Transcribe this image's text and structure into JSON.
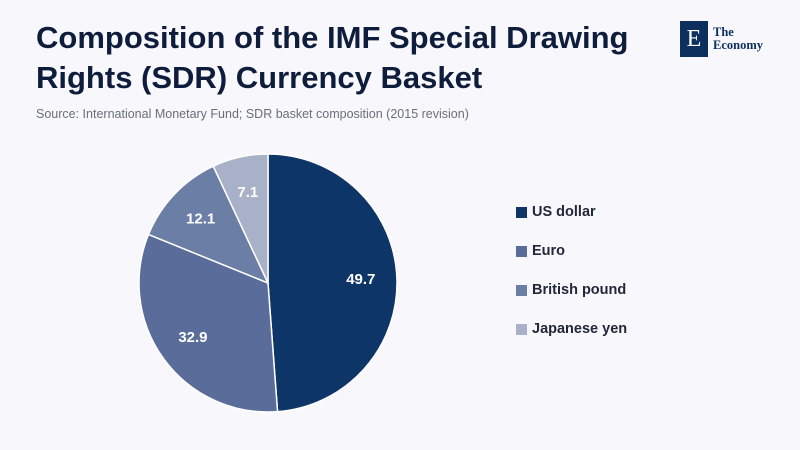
{
  "title": "Composition of the IMF Special Drawing Rights (SDR) Currency Basket",
  "source": "Source: International Monetary Fund; SDR basket composition (2015 revision)",
  "brand": {
    "mark": "E",
    "line1": "The",
    "line2": "Economy"
  },
  "colors": {
    "background": "#f7f7fc",
    "title": "#0f1d3d",
    "us_dollar": "#0d3568",
    "euro": "#5a6d9a",
    "british_pound": "#6b7fa6",
    "japanese_yen": "#a9b1c8"
  },
  "chart_data": {
    "type": "pie",
    "title": "Composition of the IMF Special Drawing Rights (SDR) Currency Basket",
    "start": "12 o'clock, clockwise",
    "legend_position": "right",
    "slices": [
      {
        "label": "US dollar",
        "value": 49.7,
        "color": "#0d3568"
      },
      {
        "label": "Euro",
        "value": 32.9,
        "color": "#5a6d9a"
      },
      {
        "label": "British pound",
        "value": 12.1,
        "color": "#6b7fa6"
      },
      {
        "label": "Japanese yen",
        "value": 7.1,
        "color": "#a9b1c8"
      }
    ]
  }
}
